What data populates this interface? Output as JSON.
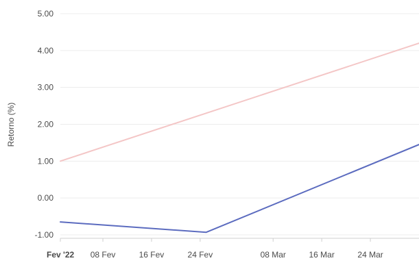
{
  "chart_data": {
    "type": "line",
    "title": "",
    "xlabel": "",
    "ylabel": "Retorno (%)",
    "ylim": [
      -1.0,
      5.0
    ],
    "yticks": [
      "5.00",
      "4.00",
      "3.00",
      "2.00",
      "1.00",
      "0.00",
      "-1.00"
    ],
    "xticks": [
      {
        "label": "Fev '22",
        "date": "2022-02-01"
      },
      {
        "label": "08 Fev",
        "date": "2022-02-08"
      },
      {
        "label": "16 Fev",
        "date": "2022-02-16"
      },
      {
        "label": "24 Fev",
        "date": "2022-02-24"
      },
      {
        "label": "08 Mar",
        "date": "2022-03-08"
      },
      {
        "label": "16 Mar",
        "date": "2022-03-16"
      },
      {
        "label": "24 Mar",
        "date": "2022-03-24"
      }
    ],
    "grid": true,
    "legend": "none",
    "series": [
      {
        "color": "#f4c6c6",
        "x": [
          "2022-02-01",
          "2022-04-01"
        ],
        "values": [
          1.0,
          4.2
        ]
      },
      {
        "color": "#5b6bbf",
        "x": [
          "2022-02-01",
          "2022-02-25",
          "2022-04-01"
        ],
        "values": [
          -0.65,
          -0.93,
          1.45
        ]
      }
    ]
  }
}
